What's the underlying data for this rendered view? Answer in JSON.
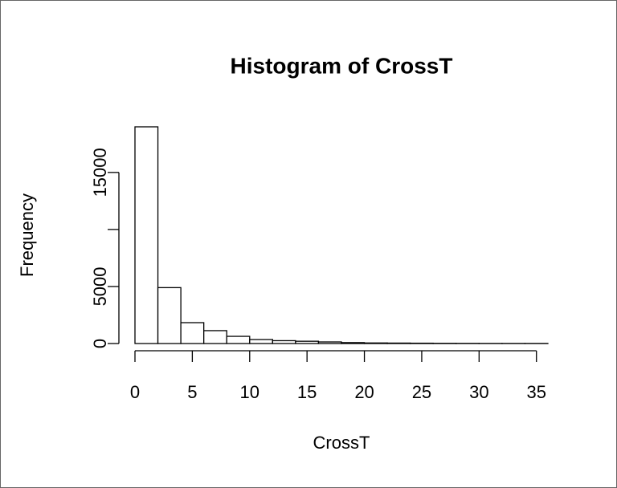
{
  "chart_data": {
    "type": "histogram",
    "title": "Histogram of CrossT",
    "x_label": "CrossT",
    "y_label": "Frequency",
    "bins": [
      0,
      2,
      4,
      6,
      8,
      10,
      12,
      14,
      16,
      18,
      20,
      22,
      24,
      26,
      28,
      30,
      32,
      34,
      36
    ],
    "values": [
      19000,
      4900,
      1830,
      1130,
      630,
      350,
      250,
      200,
      140,
      80,
      50,
      40,
      30,
      20,
      15,
      10,
      10,
      10
    ],
    "color": "#ffffff",
    "xlim": [
      0,
      36
    ],
    "xticks": [
      0,
      5,
      10,
      15,
      20,
      25,
      30,
      35
    ],
    "ylim": [
      0,
      19000
    ],
    "yticks": [
      0,
      5000,
      {
        "value": 10000,
        "label": null
      },
      15000
    ]
  }
}
